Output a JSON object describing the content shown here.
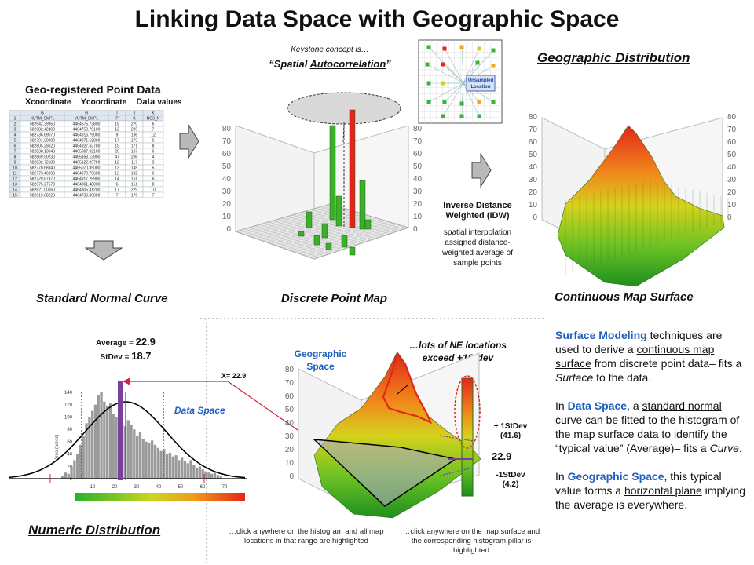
{
  "title": "Linking Data Space with Geographic Space",
  "keystone": {
    "line1": "Keystone concept is…",
    "quote_open": "“Spatial ",
    "quote_u": "Autocorrelation",
    "quote_close": "”"
  },
  "geographic_distribution": "Geographic Distribution",
  "spreadsheet": {
    "heading": "Geo-registered Point Data",
    "sub_x": "X",
    "sub_x_rest": "coordinate",
    "sub_y": "Y",
    "sub_y_rest": "coordinate",
    "sub_data": "Data",
    "sub_data_rest": "values",
    "col_letters": [
      "",
      "G",
      "H",
      "I",
      "J",
      "K"
    ],
    "headers": [
      "1",
      "XUTM_SMPL",
      "YUTM_SMPL",
      "P",
      "K",
      "NO3_N"
    ],
    "rows": [
      [
        "2",
        "582642.39950",
        "4464675.72800",
        "15",
        "270",
        "6"
      ],
      [
        "3",
        "582682.42400",
        "4464759.76100",
        "12",
        "205",
        "7"
      ],
      [
        "4",
        "582736.69070",
        "4464816.75000",
        "9",
        "196",
        "12"
      ],
      [
        "5",
        "582791.30300",
        "4464871.52800",
        "17",
        "173",
        "6"
      ],
      [
        "6",
        "582805.29620",
        "4464927.63700",
        "19",
        "171",
        "8"
      ],
      [
        "7",
        "582838.13940",
        "4465007.92100",
        "26",
        "137",
        "6"
      ],
      [
        "8",
        "582869.90230",
        "4465163.13900",
        "47",
        "206",
        "4"
      ],
      [
        "9",
        "582832.72180",
        "4465122.09700",
        "12",
        "117",
        "3"
      ],
      [
        "10",
        "582770.68940",
        "4465070.89000",
        "13",
        "145",
        "5"
      ],
      [
        "11",
        "582773.46890",
        "4464979.79600",
        "13",
        "182",
        "6"
      ],
      [
        "12",
        "582729.87970",
        "4464917.25900",
        "14",
        "161",
        "6"
      ],
      [
        "13",
        "582675.27570",
        "4464861.48000",
        "6",
        "151",
        "8"
      ],
      [
        "14",
        "582621.00160",
        "4464805.41200",
        "17",
        "229",
        "10"
      ],
      [
        "15",
        "582619.68220",
        "4464733.89000",
        "7",
        "176",
        "7"
      ],
      [
        "16",
        "582654.34000",
        "4464656.63600",
        "8",
        "225",
        "7"
      ]
    ]
  },
  "captions": {
    "standard_normal": "Standard Normal Curve",
    "discrete": "Discrete  Point  Map",
    "continuous": "Continuous Map Surface"
  },
  "idw": {
    "title": "Inverse Distance Weighted (IDW)",
    "desc": "spatial interpolation assigned distance-weighted average of sample points"
  },
  "idw_inset": {
    "label1": "Unsampled",
    "label2": "Location"
  },
  "surface_text": {
    "p1_a": "Surface Modeling",
    "p1_b": " techniques are used to derive a ",
    "p1_c": "continuous map surface",
    "p1_d": " from  discrete point data– fits a ",
    "p1_e": "Surface",
    "p1_f": " to the data.",
    "p2_a": "In ",
    "p2_b": "Data Space",
    "p2_c": ",  a ",
    "p2_d": "standard normal curve",
    "p2_e": " can be fitted to the histogram of the map surface data to identify the “typical value” (Average)– fits a ",
    "p2_f": "Curve",
    "p2_g": ".",
    "p3_a": "In ",
    "p3_b": "Geographic  Space",
    "p3_c": ",  this typical value forms a ",
    "p3_d": "horizontal plane",
    "p3_e": " implying the average is everywhere."
  },
  "stats": {
    "avg_label": "Average = ",
    "avg_value": "22.9",
    "sd_label": "StDev = ",
    "sd_value": "18.7"
  },
  "xbar": "X= 22.9",
  "data_space": "Data Space",
  "geo_space": "Geographic Space",
  "ne_note": "…lots of NE locations exceed +1Stdev",
  "sd_plus": "+ 1StDev (41.6)",
  "sd_mean": "22.9",
  "sd_minus": "-1StDev (4.2)",
  "numeric_distribution": "Numeric Distribution",
  "note_left": "…click anywhere on the histogram and all map locations in that range are highlighted",
  "note_right": "…click anywhere on the map surface and the corresponding histogram pillar is highlighted",
  "axis_3d": [
    "0",
    "10",
    "20",
    "30",
    "40",
    "50",
    "60",
    "70",
    "80"
  ],
  "hist_y_ticks": [
    "0",
    "20",
    "40",
    "60",
    "80",
    "100",
    "120",
    "140"
  ],
  "hist_y_label": "Area (acres)",
  "hist_x_ticks": [
    "10",
    "20",
    "30",
    "40",
    "50",
    "60",
    "70"
  ],
  "colors": {
    "blue_text": "#1f5fbf",
    "pillar_green": "#3cb02a",
    "pillar_red": "#e0261a",
    "curve_black": "#000000",
    "highlight_purple": "#7b3fa0",
    "mean_red": "#d9233a"
  }
}
